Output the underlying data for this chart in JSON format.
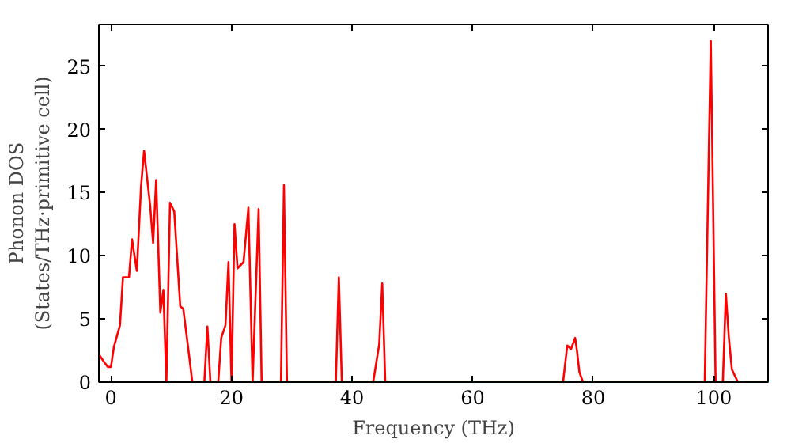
{
  "chart_data": {
    "type": "line",
    "xlabel": "Frequency (THz)",
    "ylabel": "Phonon DOS\n(States/THz·primitive cell)",
    "xlim": [
      -2,
      109
    ],
    "ylim": [
      0,
      28.3
    ],
    "xticks": [
      0,
      20,
      40,
      60,
      80,
      100
    ],
    "yticks": [
      0,
      5,
      10,
      15,
      20,
      25
    ],
    "grid": false,
    "marker": "none",
    "line_style": "solid",
    "series": [
      {
        "color": "#ff0000",
        "x": [
          -2,
          -1,
          -0.5,
          0,
          0.5,
          1.5,
          2,
          3,
          3.5,
          4.3,
          5,
          5.5,
          6.5,
          7,
          7.5,
          8.2,
          8.7,
          9.2,
          9.8,
          10.5,
          11.5,
          12,
          13,
          13.5,
          15.5,
          16,
          16.5,
          17.8,
          18.3,
          19,
          19.5,
          20,
          20.5,
          21,
          22,
          22.8,
          23.5,
          24.5,
          25,
          28.2,
          28.7,
          29.2,
          37.3,
          37.8,
          38.3,
          43.5,
          44.5,
          45,
          45.5,
          75,
          75.7,
          76.3,
          77,
          77.3,
          77.7,
          78.3,
          98.5,
          99.5,
          100.3,
          101.5,
          102,
          102.5,
          103,
          104,
          109
        ],
        "values": [
          2.2,
          1.5,
          1.2,
          1.2,
          2.8,
          4.5,
          8.3,
          8.3,
          11.3,
          8.8,
          15.5,
          18.3,
          14,
          11,
          16,
          5.5,
          7.3,
          0,
          14.2,
          13.5,
          6,
          5.8,
          2,
          0,
          0,
          4.4,
          0,
          0,
          3.5,
          4.5,
          9.5,
          0,
          12.5,
          9,
          9.5,
          13.8,
          0,
          13.7,
          0,
          0,
          15.6,
          0,
          0,
          8.3,
          0,
          0,
          3,
          7.8,
          0,
          0,
          2.9,
          2.6,
          3.5,
          2.5,
          0.8,
          0,
          0,
          27,
          0,
          0,
          7,
          3.5,
          1,
          0,
          0
        ]
      }
    ]
  }
}
